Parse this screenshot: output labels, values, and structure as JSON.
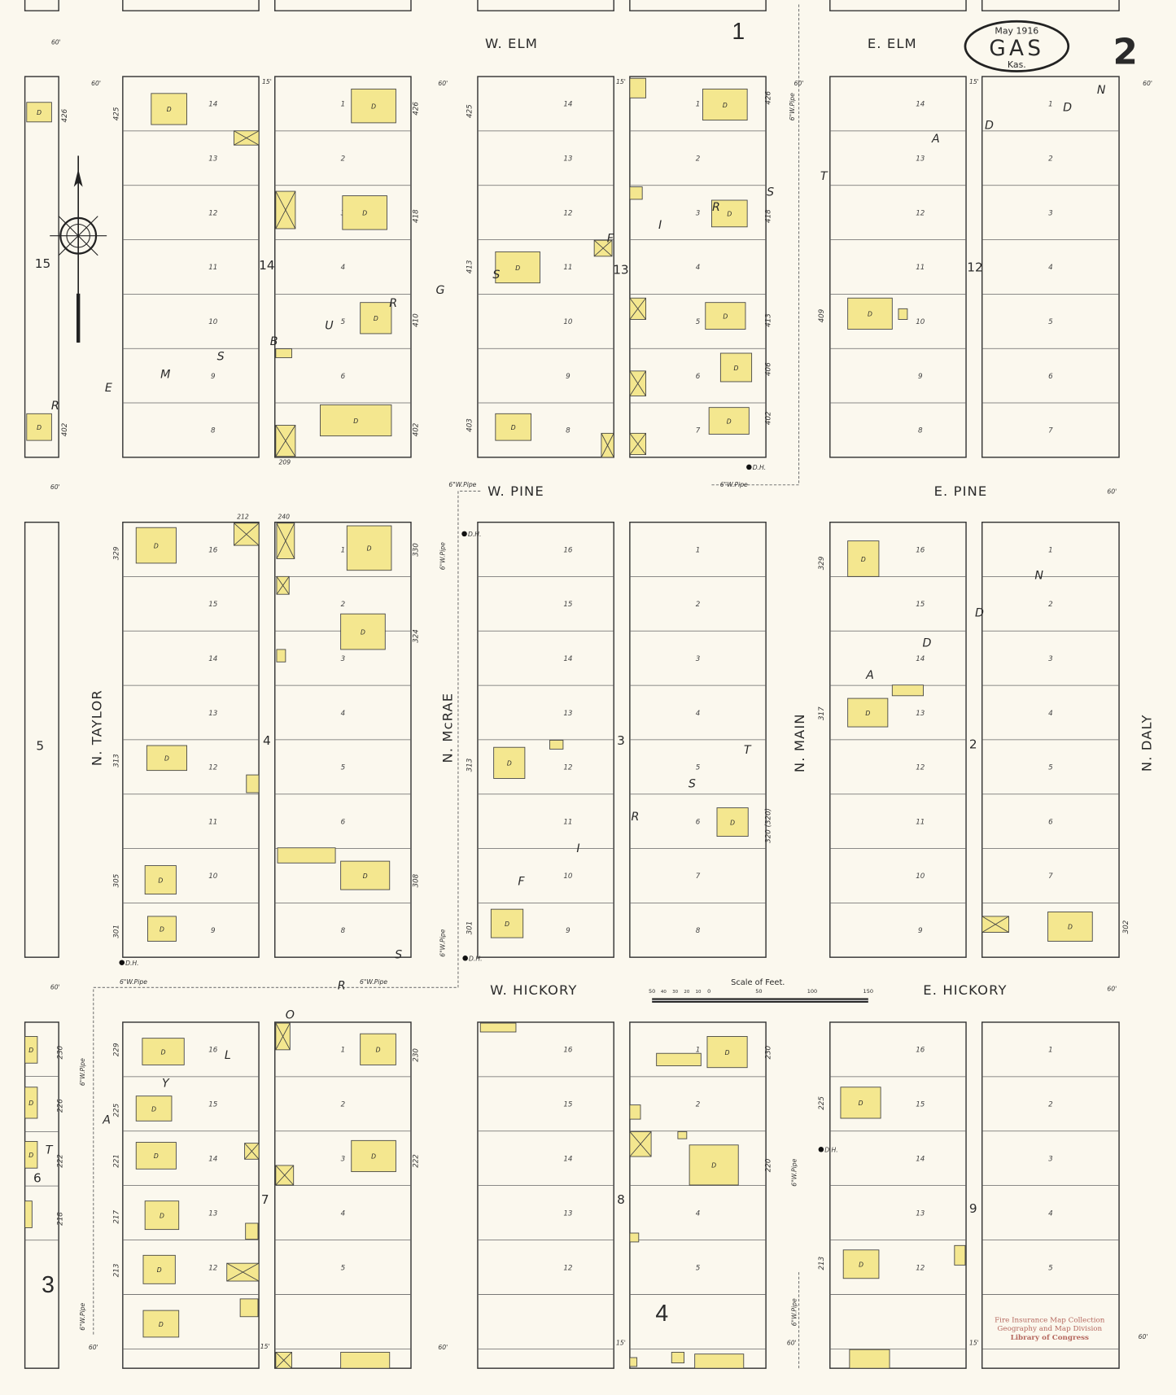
{
  "title": {
    "month_year": "May 1916",
    "town": "GAS",
    "state": "Kas.",
    "sheet_number": "2"
  },
  "streets": {
    "w_elm": "W. ELM",
    "e_elm": "E. ELM",
    "w_pine": "W. PINE",
    "e_pine": "E. PINE",
    "w_hickory": "W. HICKORY",
    "e_hickory": "E. HICKORY",
    "n_taylor": "N. TAYLOR",
    "n_mcrae": "N. McRAE",
    "n_main": "N. MAIN",
    "n_daly": "N. DALY"
  },
  "blocks": [
    "14",
    "13",
    "12",
    "15",
    "5",
    "4",
    "3",
    "2",
    "6",
    "7",
    "8",
    "9"
  ],
  "sheet_refs": [
    "1",
    "3",
    "4"
  ],
  "lots": {
    "row1_left": [
      "14",
      "13",
      "12",
      "11",
      "10",
      "9",
      "8"
    ],
    "row1_right": [
      "1",
      "2",
      "3",
      "4",
      "5",
      "6",
      "7"
    ],
    "row2_left": [
      "16",
      "15",
      "14",
      "13",
      "12",
      "11",
      "10",
      "9"
    ],
    "row2_right": [
      "1",
      "2",
      "3",
      "4",
      "5",
      "6",
      "7",
      "8"
    ],
    "row3_left": [
      "16",
      "15",
      "14",
      "13",
      "12"
    ],
    "row3_right": [
      "1",
      "2",
      "3",
      "4",
      "5"
    ]
  },
  "house_numbers": [
    "426",
    "425",
    "426",
    "425",
    "426",
    "418",
    "418",
    "413",
    "413",
    "410",
    "409",
    "406",
    "402",
    "402",
    "403",
    "402",
    "329",
    "330",
    "324",
    "329",
    "317",
    "313",
    "313",
    "320 (320)",
    "305",
    "308",
    "301",
    "301",
    "302",
    "229",
    "230",
    "230",
    "230",
    "225",
    "226",
    "225",
    "221",
    "222",
    "222",
    "220",
    "217",
    "218",
    "213",
    "213"
  ],
  "map_letters": [
    "R",
    "E",
    "M",
    "S",
    "B",
    "U",
    "R",
    "G",
    "S",
    "F",
    "I",
    "R",
    "S",
    "T",
    "A",
    "D",
    "D",
    "N",
    "A",
    "D",
    "D",
    "N",
    "F",
    "I",
    "R",
    "S",
    "T",
    "S",
    "R",
    "O",
    "L",
    "Y",
    "A",
    "T"
  ],
  "labels": {
    "sixty_ft": "60'",
    "fifteen_ft": "15'",
    "dh": "D.H.",
    "pipe": "6\"W.Pipe",
    "dwelling": "D",
    "lot_209": "209",
    "lot_212": "212",
    "lot_240": "240"
  },
  "scale": {
    "title": "Scale of Feet.",
    "ticks": [
      "50",
      "40",
      "30",
      "20",
      "10",
      "0",
      "50",
      "100",
      "150"
    ]
  },
  "stamp": {
    "line1": "Fire Insurance Map Collection",
    "line2": "Geography and Map Division",
    "line3": "Library of Congress"
  },
  "colors": {
    "building": "#f4e78f",
    "paper": "#fbf8ee",
    "ink": "#2a2a2a",
    "stamp": "#b5675e"
  }
}
